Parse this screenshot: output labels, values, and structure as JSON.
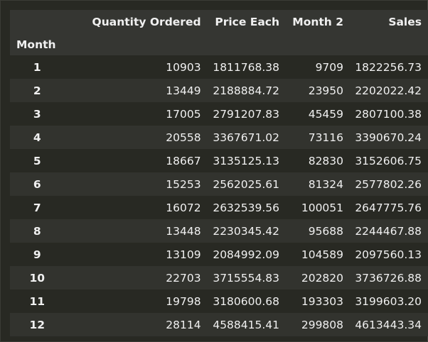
{
  "table": {
    "columns": [
      "Quantity Ordered",
      "Price Each",
      "Month 2",
      "Sales"
    ],
    "index_name": "Month",
    "rows": [
      {
        "month": "1",
        "quantity": "10903",
        "price": "1811768.38",
        "month2": "9709",
        "sales": "1822256.73"
      },
      {
        "month": "2",
        "quantity": "13449",
        "price": "2188884.72",
        "month2": "23950",
        "sales": "2202022.42"
      },
      {
        "month": "3",
        "quantity": "17005",
        "price": "2791207.83",
        "month2": "45459",
        "sales": "2807100.38"
      },
      {
        "month": "4",
        "quantity": "20558",
        "price": "3367671.02",
        "month2": "73116",
        "sales": "3390670.24"
      },
      {
        "month": "5",
        "quantity": "18667",
        "price": "3135125.13",
        "month2": "82830",
        "sales": "3152606.75"
      },
      {
        "month": "6",
        "quantity": "15253",
        "price": "2562025.61",
        "month2": "81324",
        "sales": "2577802.26"
      },
      {
        "month": "7",
        "quantity": "16072",
        "price": "2632539.56",
        "month2": "100051",
        "sales": "2647775.76"
      },
      {
        "month": "8",
        "quantity": "13448",
        "price": "2230345.42",
        "month2": "95688",
        "sales": "2244467.88"
      },
      {
        "month": "9",
        "quantity": "13109",
        "price": "2084992.09",
        "month2": "104589",
        "sales": "2097560.13"
      },
      {
        "month": "10",
        "quantity": "22703",
        "price": "3715554.83",
        "month2": "202820",
        "sales": "3736726.88"
      },
      {
        "month": "11",
        "quantity": "19798",
        "price": "3180600.68",
        "month2": "193303",
        "sales": "3199603.20"
      },
      {
        "month": "12",
        "quantity": "28114",
        "price": "4588415.41",
        "month2": "299808",
        "sales": "4613443.34"
      }
    ]
  }
}
